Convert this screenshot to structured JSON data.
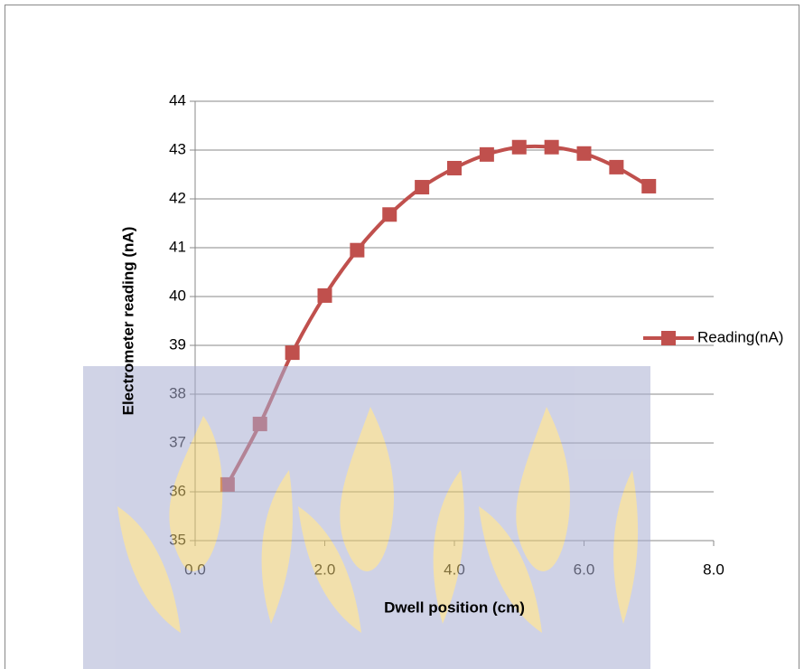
{
  "chart_data": {
    "type": "line",
    "x_label": "Dwell position (cm)",
    "y_label": "Electrometer reading (nA)",
    "x": [
      0.5,
      1.0,
      1.5,
      2.0,
      2.5,
      3.0,
      3.5,
      4.0,
      4.5,
      5.0,
      5.5,
      6.0,
      6.5,
      7.0
    ],
    "series": [
      {
        "name": "Reading(nA)",
        "color": "#c0504d",
        "values": [
          36.15,
          37.39,
          38.85,
          40.02,
          40.95,
          41.68,
          42.24,
          42.63,
          42.91,
          43.06,
          43.06,
          42.93,
          42.65,
          42.26
        ]
      }
    ],
    "xlim": [
      0,
      8
    ],
    "xticks": [
      {
        "value": 0,
        "label": "0.0"
      },
      {
        "value": 2,
        "label": "2.0"
      },
      {
        "value": 4,
        "label": "4.0"
      },
      {
        "value": 6,
        "label": "6.0"
      },
      {
        "value": 8,
        "label": "8.0"
      }
    ],
    "ylim": [
      35,
      44
    ],
    "yticks": [
      35,
      36,
      37,
      38,
      39,
      40,
      41,
      42,
      43,
      44
    ],
    "grid": true,
    "smooth": true,
    "legend": "right"
  }
}
